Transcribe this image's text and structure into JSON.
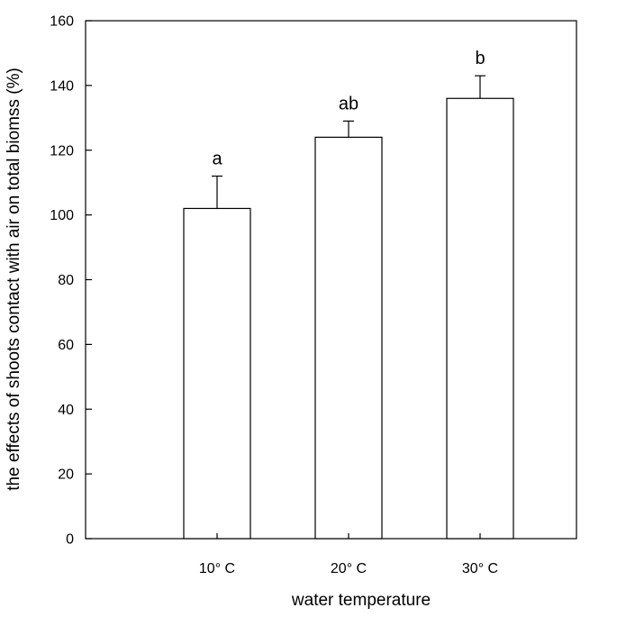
{
  "chart_data": {
    "type": "bar",
    "categories": [
      "10° C",
      "20° C",
      "30° C"
    ],
    "values": [
      102,
      124,
      136
    ],
    "errors": [
      10,
      5,
      7
    ],
    "significance_labels": [
      "a",
      "ab",
      "b"
    ],
    "xlabel": "water temperature",
    "ylabel": "the effects of shoots contact with air on total biomss (%)",
    "ylim": [
      0,
      160
    ],
    "yticks": [
      "0",
      "20",
      "40",
      "60",
      "80",
      "100",
      "120",
      "140",
      "160"
    ],
    "grid": false,
    "legend": "none",
    "colors": {
      "bar_fill": "#ffffff",
      "bar_stroke": "#000000",
      "axis": "#000000"
    }
  }
}
